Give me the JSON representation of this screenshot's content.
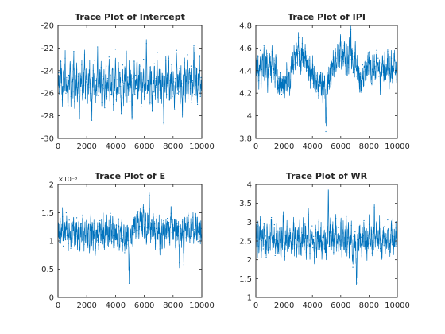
{
  "figure": {
    "line_color": "#0072BD",
    "axis_color": "#262626",
    "background": "#ffffff"
  },
  "chart_data": [
    {
      "type": "line",
      "title": "Trace Plot of Intercept",
      "xlabel": "",
      "ylabel": "",
      "xlim": [
        0,
        10000
      ],
      "ylim": [
        -30,
        -20
      ],
      "xticks": [
        0,
        2000,
        4000,
        6000,
        8000,
        10000
      ],
      "yticks": [
        -30,
        -28,
        -26,
        -24,
        -22,
        -20
      ],
      "ytick_labels": [
        "-30",
        "-28",
        "-26",
        "-24",
        "-22",
        "-20"
      ],
      "exponent_label": "",
      "grid": false,
      "legend": "none",
      "n_samples": 10000,
      "approx_mean": -25,
      "x_min_value": -28.6,
      "y_max_value": -21.5,
      "series": [
        {
          "values": [
            -25.0,
            -24.2,
            -25.9,
            -25.3,
            -23.2,
            -24.8,
            -26.6,
            -25.4,
            -24.0,
            -25.7,
            -22.9,
            -26.0,
            -24.6,
            -25.8,
            -27.1,
            -24.4,
            -25.2,
            -23.8,
            -26.3,
            -25.0,
            -24.1,
            -25.9,
            -22.3,
            -26.7,
            -24.9,
            -25.6,
            -23.9,
            -26.2,
            -24.5,
            -25.1,
            -27.6,
            -24.3,
            -25.8,
            -23.5,
            -26.1,
            -24.7,
            -25.3,
            -22.6,
            -26.4,
            -25.0,
            -24.2,
            -26.9,
            -24.8,
            -25.5,
            -23.4,
            -26.0,
            -24.6,
            -28.4,
            -25.2,
            -24.0,
            -25.7,
            -23.1,
            -26.5,
            -24.9,
            -25.4,
            -21.9,
            -26.2,
            -25.1,
            -24.3,
            -25.9,
            -23.7,
            -26.8,
            -24.5,
            -25.6,
            -24.1,
            -27.3,
            -25.0,
            -23.6,
            -26.3,
            -24.7,
            -25.5,
            -22.8,
            -25.8,
            -24.4,
            -26.1,
            -25.2,
            -23.9,
            -27.0,
            -24.6,
            -25.3,
            -22.1,
            -26.6,
            -24.8,
            -25.7,
            -23.3,
            -26.0,
            -24.2,
            -25.4,
            -27.8,
            -24.9,
            -23.5,
            -26.4,
            -25.1,
            -24.0,
            -25.8,
            -22.5,
            -26.2,
            -24.6,
            -25.5,
            -23.8,
            -26.7,
            -24.3,
            -25.0,
            -28.1,
            -24.7,
            -25.9,
            -23.2,
            -26.1,
            -24.4,
            -25.6,
            -22.7,
            -26.5,
            -25.2,
            -24.1,
            -25.7,
            -23.6,
            -27.2,
            -24.8,
            -25.3,
            -23.0,
            -26.3,
            -24.5,
            -25.8,
            -21.6,
            -26.0,
            -24.9,
            -25.4,
            -23.7,
            -26.8,
            -24.2,
            -25.1,
            -27.5,
            -24.6,
            -25.9,
            -23.4,
            -26.2,
            -24.7,
            -25.5,
            -22.4,
            -26.4,
            -25.0,
            -24.3,
            -25.7,
            -23.9,
            -26.9,
            -24.5,
            -25.2,
            -28.6,
            -24.8,
            -25.6,
            -23.1,
            -26.1,
            -24.4,
            -25.3,
            -22.9,
            -26.6,
            -24.9,
            -25.8,
            -23.5,
            -26.3,
            -24.1,
            -25.0,
            -27.4,
            -24.7,
            -25.4,
            -22.2,
            -26.0,
            -24.6,
            -25.9,
            -23.8,
            -26.7,
            -24.3,
            -25.1,
            -27.9,
            -24.8,
            -25.5,
            -23.3,
            -26.2,
            -24.5,
            -25.7,
            -22.6,
            -26.5,
            -25.0,
            -24.2,
            -25.6,
            -23.6,
            -26.8,
            -24.9,
            -25.3,
            -21.8,
            -26.1,
            -24.4,
            -25.8,
            -23.9,
            -27.0,
            -24.7,
            -25.2,
            -22.8,
            -26.3,
            -24.6,
            -25.4
          ]
        }
      ]
    },
    {
      "type": "line",
      "title": "Trace Plot of IPI",
      "xlabel": "",
      "ylabel": "",
      "xlim": [
        0,
        10000
      ],
      "ylim": [
        3.8,
        4.8
      ],
      "xticks": [
        0,
        2000,
        4000,
        6000,
        8000,
        10000
      ],
      "yticks": [
        3.8,
        4,
        4.2,
        4.4,
        4.6,
        4.8
      ],
      "ytick_labels": [
        "3.8",
        "4",
        "4.2",
        "4.4",
        "4.6",
        "4.8"
      ],
      "exponent_label": "",
      "grid": false,
      "legend": "none",
      "n_samples": 10000,
      "approx_mean": 4.38,
      "series": [
        {
          "values": [
            4.4,
            4.46,
            4.35,
            4.52,
            4.31,
            4.44,
            4.58,
            4.29,
            4.41,
            4.5,
            4.36,
            4.62,
            4.33,
            4.47,
            4.39,
            4.55,
            4.28,
            4.43,
            4.37,
            4.53,
            4.45,
            4.34,
            4.57,
            4.42,
            4.38,
            4.49,
            4.3,
            4.46,
            4.4,
            4.36,
            4.27,
            4.33,
            4.24,
            4.38,
            4.29,
            4.19,
            4.35,
            4.26,
            4.31,
            4.22,
            4.34,
            4.28,
            4.41,
            4.23,
            4.3,
            4.37,
            4.25,
            4.32,
            4.44,
            4.38,
            4.49,
            4.41,
            4.56,
            4.45,
            4.52,
            4.61,
            4.47,
            4.55,
            4.69,
            4.5,
            4.58,
            4.43,
            4.54,
            4.64,
            4.48,
            4.57,
            4.46,
            4.6,
            4.51,
            4.4,
            4.53,
            4.44,
            4.37,
            4.49,
            4.31,
            4.42,
            4.35,
            4.46,
            4.29,
            4.39,
            4.26,
            4.33,
            4.21,
            4.36,
            4.3,
            4.18,
            4.32,
            4.27,
            4.38,
            4.24,
            4.3,
            4.15,
            4.28,
            4.35,
            4.22,
            3.86,
            4.19,
            4.31,
            4.26,
            4.36,
            4.29,
            4.4,
            4.33,
            4.45,
            4.37,
            4.5,
            4.41,
            4.47,
            4.56,
            4.42,
            4.51,
            4.63,
            4.46,
            4.58,
            4.49,
            4.7,
            4.52,
            4.44,
            4.57,
            4.48,
            4.62,
            4.53,
            4.45,
            4.6,
            4.39,
            4.54,
            4.43,
            4.66,
            4.5,
            4.76,
            4.47,
            4.55,
            4.38,
            4.52,
            4.41,
            4.59,
            4.44,
            4.35,
            4.49,
            4.3,
            4.42,
            4.26,
            4.37,
            4.22,
            4.33,
            4.45,
            4.28,
            4.39,
            4.47,
            4.31,
            4.43,
            4.36,
            4.5,
            4.4,
            4.56,
            4.34,
            4.46,
            4.29,
            4.41,
            4.54,
            4.37,
            4.48,
            4.32,
            4.44,
            4.58,
            4.4,
            4.51,
            4.35,
            4.47,
            4.26,
            4.43,
            4.38,
            4.53,
            4.41,
            4.36,
            4.49,
            4.33,
            4.45,
            4.39,
            4.57,
            4.42,
            4.3,
            4.46,
            4.37,
            4.51,
            4.34,
            4.44,
            4.4,
            4.52,
            4.38,
            4.47,
            4.32,
            4.43
          ]
        }
      ]
    },
    {
      "type": "line",
      "title": "Trace Plot of E",
      "xlabel": "",
      "ylabel": "",
      "xlim": [
        0,
        10000
      ],
      "ylim": [
        0,
        0.002
      ],
      "ytick_scale": 0.001,
      "xticks": [
        0,
        2000,
        4000,
        6000,
        8000,
        10000
      ],
      "yticks": [
        0,
        0.0005,
        0.001,
        0.0015,
        0.002
      ],
      "ytick_labels": [
        "0",
        "0.5",
        "1",
        "1.5",
        "2"
      ],
      "exponent_label": "×10⁻³",
      "grid": false,
      "legend": "none",
      "n_samples": 10000,
      "approx_mean": 0.00115,
      "series": [
        {
          "values": [
            0.00112,
            0.00125,
            0.00098,
            0.00134,
            0.00106,
            0.00119,
            0.00143,
            0.00091,
            0.00115,
            0.00128,
            0.00102,
            0.0015,
            0.00109,
            0.00122,
            0.00095,
            0.00137,
            0.00113,
            0.00087,
            0.00126,
            0.00104,
            0.00118,
            0.00132,
            0.00096,
            0.00121,
            0.00108,
            0.00141,
            0.00099,
            0.00117,
            0.00127,
            0.00089,
            0.00114,
            0.0013,
            0.00103,
            0.00146,
            0.00111,
            0.00094,
            0.00124,
            0.00107,
            0.00135,
            0.00116,
            0.001,
            0.00129,
            0.00092,
            0.0012,
            0.00139,
            0.00105,
            0.00123,
            0.00097,
            0.00131,
            0.0011,
            0.00082,
            0.00119,
            0.00101,
            0.00126,
            0.00093,
            0.00113,
            0.00136,
            0.00098,
            0.00121,
            0.00108,
            0.00144,
            0.00115,
            0.0009,
            0.00127,
            0.00103,
            0.00133,
            0.00111,
            0.00095,
            0.00124,
            0.00106,
            0.00149,
            0.00117,
            0.00099,
            0.0013,
            0.00109,
            0.00088,
            0.0012,
            0.00102,
            0.00128,
            0.00096,
            0.00114,
            0.00138,
            0.00084,
            0.00118,
            0.00105,
            0.00132,
            0.00092,
            0.0011,
            0.00125,
            0.00079,
            0.00107,
            0.00121,
            0.00094,
            0.00116,
            0.00101,
            0.00025,
            0.00089,
            0.00112,
            0.00097,
            0.00127,
            0.00104,
            0.00135,
            0.00115,
            0.0014,
            0.00108,
            0.00131,
            0.00119,
            0.00152,
            0.00113,
            0.00126,
            0.00147,
            0.0011,
            0.00134,
            0.00121,
            0.0016,
            0.00117,
            0.00129,
            0.00145,
            0.00103,
            0.00123,
            0.00138,
            0.00114,
            0.00181,
            0.00126,
            0.00108,
            0.00136,
            0.00119,
            0.00148,
            0.00111,
            0.0013,
            0.00095,
            0.00122,
            0.00143,
            0.00105,
            0.00116,
            0.00131,
            0.00086,
            0.00113,
            0.00127,
            0.001,
            0.0012,
            0.00136,
            0.00094,
            0.00118,
            0.00125,
            0.00107,
            0.0014,
            0.00111,
            0.00133,
            0.00098,
            0.00124,
            0.00149,
            0.00115,
            0.00128,
            0.00103,
            0.00121,
            0.00137,
            0.00092,
            0.00117,
            0.0013,
            0.00109,
            0.00126,
            0.00061,
            0.00112,
            0.00122,
            0.00101,
            0.00134,
            0.00116,
            0.00058,
            0.00124,
            0.00139,
            0.00106,
            0.00129,
            0.00113,
            0.00146,
            0.00119,
            0.00097,
            0.00132,
            0.00108,
            0.00125,
            0.00142,
            0.00111,
            0.0012,
            0.00104,
            0.00135,
            0.00115,
            0.00127,
            0.00099,
            0.00118,
            0.0013,
            0.00107,
            0.00122,
            0.00112
          ]
        }
      ]
    },
    {
      "type": "line",
      "title": "Trace Plot of WR",
      "xlabel": "",
      "ylabel": "",
      "xlim": [
        0,
        10000
      ],
      "ylim": [
        1,
        4
      ],
      "xticks": [
        0,
        2000,
        4000,
        6000,
        8000,
        10000
      ],
      "yticks": [
        1,
        1.5,
        2,
        2.5,
        3,
        3.5,
        4
      ],
      "ytick_labels": [
        "1",
        "1.5",
        "2",
        "2.5",
        "3",
        "3.5",
        "4"
      ],
      "exponent_label": "",
      "grid": false,
      "legend": "none",
      "n_samples": 10000,
      "approx_mean": 2.5,
      "series": [
        {
          "values": [
            2.45,
            2.71,
            2.22,
            2.89,
            2.36,
            2.58,
            3.05,
            2.14,
            2.51,
            2.77,
            2.29,
            2.96,
            2.4,
            2.63,
            2.07,
            2.84,
            2.48,
            2.19,
            2.69,
            2.33,
            2.55,
            3.12,
            2.26,
            2.6,
            2.42,
            2.93,
            2.11,
            2.53,
            2.74,
            2.31,
            2.66,
            2.18,
            2.82,
            2.47,
            2.24,
            2.7,
            2.38,
            3.18,
            2.56,
            2.09,
            2.64,
            2.44,
            2.88,
            2.27,
            2.59,
            2.35,
            2.79,
            2.5,
            2.16,
            2.68,
            2.41,
            2.99,
            2.3,
            2.61,
            2.85,
            2.23,
            2.54,
            2.76,
            2.37,
            3.08,
            2.49,
            2.13,
            2.72,
            2.43,
            2.92,
            2.28,
            2.65,
            2.81,
            2.2,
            2.57,
            2.39,
            3.21,
            2.52,
            2.17,
            2.75,
            2.46,
            2.9,
            2.32,
            2.62,
            2.06,
            2.58,
            2.8,
            2.25,
            2.67,
            2.44,
            3.01,
            2.34,
            2.55,
            2.78,
            2.21,
            2.6,
            2.41,
            2.87,
            2.3,
            2.52,
            2.12,
            2.73,
            2.48,
            4.02,
            2.36,
            2.63,
            2.95,
            2.27,
            2.57,
            2.82,
            2.19,
            2.69,
            2.45,
            3.1,
            2.33,
            2.54,
            2.86,
            2.24,
            2.61,
            2.4,
            2.97,
            2.15,
            2.5,
            2.77,
            2.31,
            2.66,
            2.43,
            3.15,
            2.28,
            2.59,
            2.83,
            2.2,
            2.56,
            2.47,
            2.91,
            2.35,
            1.8,
            2.62,
            2.39,
            2.74,
            2.26,
            1.38,
            2.53,
            2.7,
            2.32,
            2.88,
            2.44,
            2.6,
            2.1,
            2.76,
            2.49,
            3.04,
            2.37,
            2.58,
            2.81,
            2.23,
            2.65,
            2.42,
            2.94,
            2.29,
            2.55,
            2.79,
            2.18,
            2.68,
            2.46,
            3.4,
            2.34,
            2.61,
            2.85,
            2.25,
            2.57,
            2.43,
            2.98,
            2.3,
            2.64,
            2.08,
            2.52,
            2.72,
            2.38,
            2.89,
            2.27,
            2.59,
            2.45,
            3.06,
            2.33,
            2.66,
            2.21,
            2.54,
            2.78,
            2.4,
            2.92,
            2.31,
            2.62,
            2.48,
            2.84,
            2.36,
            2.56
          ]
        }
      ]
    }
  ]
}
